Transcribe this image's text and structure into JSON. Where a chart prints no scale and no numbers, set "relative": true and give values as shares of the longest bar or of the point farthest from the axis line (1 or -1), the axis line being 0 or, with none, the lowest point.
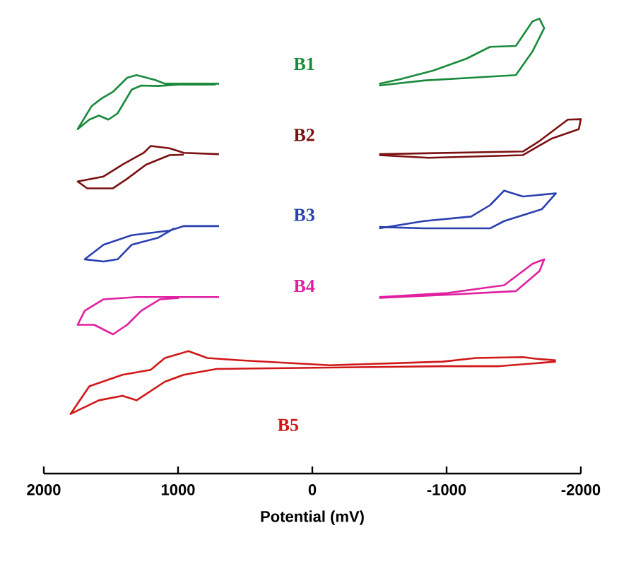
{
  "chart_data": {
    "type": "line",
    "relative": true,
    "xlabel": "Potential (mV)",
    "xlim": [
      2000,
      -2000
    ],
    "xticks": [
      2000,
      1000,
      0,
      -1000,
      -2000
    ],
    "series": [
      {
        "name": "B1",
        "color": "#1a8a3c",
        "x": [
          695,
          1098,
          1169,
          1309,
          1379,
          1485,
          1572,
          1643,
          1748,
          1661,
          1590,
          1519,
          1450,
          1345,
          1274,
          1151,
          993,
          720,
          null,
          -498,
          -832,
          -1183,
          -1516,
          -1640,
          -1727,
          -1692,
          -1640,
          -1516,
          -1324,
          -1148,
          -902,
          -656,
          -498
        ],
        "values": [
          0.857,
          0.857,
          0.865,
          0.876,
          0.87,
          0.839,
          0.824,
          0.808,
          0.757,
          0.778,
          0.787,
          0.778,
          0.792,
          0.844,
          0.853,
          0.852,
          0.855,
          0.855,
          null,
          0.853,
          0.864,
          0.87,
          0.876,
          0.928,
          0.979,
          1.0,
          0.994,
          0.94,
          0.938,
          0.912,
          0.886,
          0.867,
          0.857
        ]
      },
      {
        "name": "B2",
        "color": "#7a1010",
        "x": [
          695,
          958,
          1064,
          1204,
          1256,
          1414,
          1555,
          1748,
          1677,
          1485,
          1379,
          1239,
          1064,
          958,
          null,
          -498,
          -1569,
          -1692,
          -1903,
          -2000,
          -1985,
          -1780,
          -1656,
          -1569,
          -867,
          -498
        ],
        "values": [
          0.702,
          0.705,
          0.715,
          0.72,
          0.705,
          0.679,
          0.653,
          0.642,
          0.627,
          0.627,
          0.648,
          0.679,
          0.7,
          0.701,
          null,
          0.702,
          0.708,
          0.731,
          0.778,
          0.779,
          0.757,
          0.736,
          0.715,
          0.7,
          0.694,
          0.7
        ]
      },
      {
        "name": "B3",
        "color": "#2a40b0",
        "x": [
          695,
          958,
          1064,
          1345,
          1555,
          1695,
          1555,
          1450,
          1345,
          1151,
          1029,
          null,
          -498,
          -832,
          -1183,
          -1324,
          -1429,
          -1569,
          -1814,
          -1709,
          -1429,
          -1324,
          -832,
          -498
        ],
        "values": [
          0.544,
          0.544,
          0.534,
          0.524,
          0.503,
          0.471,
          0.466,
          0.471,
          0.503,
          0.518,
          0.539,
          null,
          0.539,
          0.555,
          0.565,
          0.59,
          0.622,
          0.609,
          0.616,
          0.581,
          0.555,
          0.539,
          0.539,
          0.542
        ]
      },
      {
        "name": "B4",
        "color": "#e020a0",
        "x": [
          695,
          1309,
          1555,
          1695,
          1748,
          1625,
          1485,
          1379,
          1274,
          1134,
          993,
          null,
          -498,
          -1008,
          -1429,
          -1640,
          -1727,
          -1692,
          -1516,
          -1008,
          -498
        ],
        "values": [
          0.388,
          0.388,
          0.383,
          0.358,
          0.327,
          0.327,
          0.306,
          0.327,
          0.358,
          0.383,
          0.386,
          null,
          0.388,
          0.397,
          0.414,
          0.461,
          0.471,
          0.445,
          0.401,
          0.393,
          0.386
        ]
      },
      {
        "name": "B5",
        "color": "#d01818",
        "x": [
          -1814,
          -1674,
          -1569,
          -1218,
          -972,
          -130,
          537,
          782,
          923,
          1098,
          1204,
          1414,
          1661,
          1801,
          1590,
          1414,
          1309,
          1098,
          958,
          713,
          -130,
          -972,
          -1393,
          -1814
        ],
        "values": [
          0.249,
          0.252,
          0.256,
          0.254,
          0.246,
          0.238,
          0.249,
          0.254,
          0.269,
          0.254,
          0.228,
          0.217,
          0.192,
          0.131,
          0.161,
          0.171,
          0.161,
          0.202,
          0.217,
          0.23,
          0.233,
          0.236,
          0.236,
          0.246
        ]
      }
    ]
  }
}
